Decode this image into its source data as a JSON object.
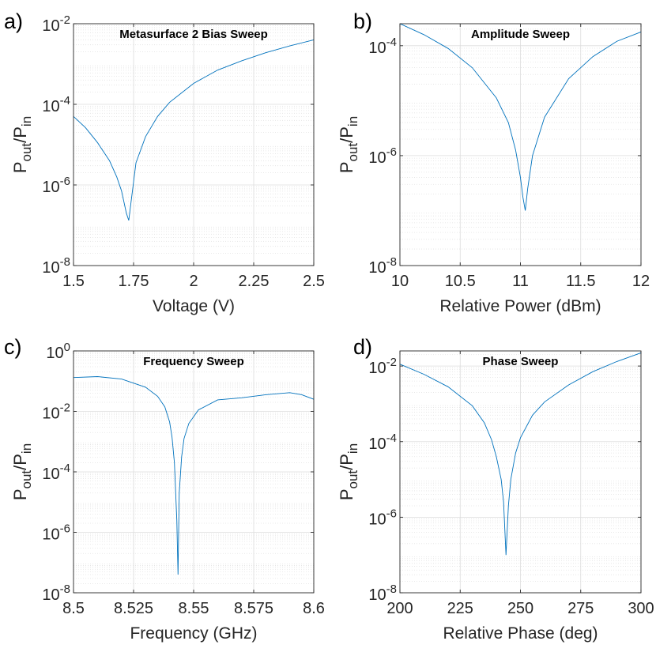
{
  "colors": {
    "line": "#0072BD",
    "grid": "#dcdcdc",
    "axis": "#262626"
  },
  "chart_data": [
    {
      "type": "line",
      "panel_label": "a)",
      "title": "Metasurface 2 Bias Sweep",
      "xlabel": "Voltage (V)",
      "ylabel": {
        "main": "P",
        "sub1": "out",
        "slash": "/P",
        "sub2": "in"
      },
      "xlim": [
        1.5,
        2.5
      ],
      "ylim_exp": [
        -8,
        -2
      ],
      "xticks": [
        1.5,
        1.75,
        2,
        2.25,
        2.5
      ],
      "xtick_labels": [
        "1.5",
        "1.75",
        "2",
        "2.25",
        "2.5"
      ],
      "yticks_exp": [
        -8,
        -6,
        -4,
        -2
      ],
      "ytick_labels": [
        {
          "base": "10",
          "exp": "-8"
        },
        {
          "base": "10",
          "exp": "-6"
        },
        {
          "base": "10",
          "exp": "-4"
        },
        {
          "base": "10",
          "exp": "-2"
        }
      ],
      "x": [
        1.5,
        1.55,
        1.6,
        1.65,
        1.68,
        1.7,
        1.72,
        1.73,
        1.74,
        1.76,
        1.8,
        1.85,
        1.9,
        2.0,
        2.1,
        2.2,
        2.3,
        2.4,
        2.5
      ],
      "y_log10": [
        -4.3,
        -4.58,
        -4.95,
        -5.4,
        -5.8,
        -6.15,
        -6.7,
        -6.88,
        -6.4,
        -5.45,
        -4.8,
        -4.3,
        -3.95,
        -3.48,
        -3.15,
        -2.92,
        -2.72,
        -2.55,
        -2.4
      ]
    },
    {
      "type": "line",
      "panel_label": "b)",
      "title": "Amplitude Sweep",
      "xlabel": "Relative Power (dBm)",
      "ylabel": {
        "main": "P",
        "sub1": "out",
        "slash": "/P",
        "sub2": "in"
      },
      "xlim": [
        10,
        12
      ],
      "ylim_exp": [
        -8,
        -3.6
      ],
      "xticks": [
        10,
        10.5,
        11,
        11.5,
        12
      ],
      "xtick_labels": [
        "10",
        "10.5",
        "11",
        "11.5",
        "12"
      ],
      "yticks_exp": [
        -8,
        -6,
        -4
      ],
      "ytick_labels": [
        {
          "base": "10",
          "exp": "-8"
        },
        {
          "base": "10",
          "exp": "-6"
        },
        {
          "base": "10",
          "exp": "-4"
        }
      ],
      "x": [
        10,
        10.2,
        10.4,
        10.6,
        10.8,
        10.9,
        10.96,
        11.0,
        11.02,
        11.04,
        11.06,
        11.1,
        11.2,
        11.4,
        11.6,
        11.8,
        12
      ],
      "y_log10": [
        -3.6,
        -3.8,
        -4.05,
        -4.4,
        -4.95,
        -5.4,
        -5.9,
        -6.4,
        -6.75,
        -7.0,
        -6.6,
        -6.0,
        -5.3,
        -4.6,
        -4.2,
        -3.92,
        -3.75
      ]
    },
    {
      "type": "line",
      "panel_label": "c)",
      "title": "Frequency Sweep",
      "xlabel": "Frequency (GHz)",
      "ylabel": {
        "main": "P",
        "sub1": "out",
        "slash": "/P",
        "sub2": "in"
      },
      "xlim": [
        8.5,
        8.6
      ],
      "ylim_exp": [
        -8,
        0
      ],
      "xticks": [
        8.5,
        8.525,
        8.55,
        8.575,
        8.6
      ],
      "xtick_labels": [
        "8.5",
        "8.525",
        "8.55",
        "8.575",
        "8.6"
      ],
      "yticks_exp": [
        -8,
        -6,
        -4,
        -2,
        0
      ],
      "ytick_labels": [
        {
          "base": "10",
          "exp": "-8"
        },
        {
          "base": "10",
          "exp": "-6"
        },
        {
          "base": "10",
          "exp": "-4"
        },
        {
          "base": "10",
          "exp": "-2"
        },
        {
          "base": "10",
          "exp": "0"
        }
      ],
      "x": [
        8.5,
        8.51,
        8.52,
        8.53,
        8.535,
        8.538,
        8.54,
        8.541,
        8.542,
        8.543,
        8.5435,
        8.544,
        8.545,
        8.546,
        8.548,
        8.552,
        8.56,
        8.57,
        8.58,
        8.59,
        8.595,
        8.6
      ],
      "y_log10": [
        -0.88,
        -0.85,
        -0.93,
        -1.2,
        -1.5,
        -1.85,
        -2.35,
        -2.85,
        -3.7,
        -5.6,
        -7.4,
        -4.7,
        -3.5,
        -2.9,
        -2.4,
        -1.95,
        -1.62,
        -1.55,
        -1.45,
        -1.38,
        -1.45,
        -1.6
      ]
    },
    {
      "type": "line",
      "panel_label": "d)",
      "title": "Phase Sweep",
      "xlabel": "Relative Phase (deg)",
      "ylabel": {
        "main": "P",
        "sub1": "out",
        "slash": "/P",
        "sub2": "in"
      },
      "xlim": [
        200,
        300
      ],
      "ylim_exp": [
        -8,
        -1.6
      ],
      "xticks": [
        200,
        225,
        250,
        275,
        300
      ],
      "xtick_labels": [
        "200",
        "225",
        "250",
        "275",
        "300"
      ],
      "yticks_exp": [
        -8,
        -6,
        -4,
        -2
      ],
      "ytick_labels": [
        {
          "base": "10",
          "exp": "-8"
        },
        {
          "base": "10",
          "exp": "-6"
        },
        {
          "base": "10",
          "exp": "-4"
        },
        {
          "base": "10",
          "exp": "-2"
        }
      ],
      "x": [
        200,
        210,
        220,
        230,
        235,
        238,
        240,
        242,
        243,
        244,
        245,
        246,
        248,
        250,
        255,
        260,
        270,
        280,
        290,
        300
      ],
      "y_log10": [
        -1.95,
        -2.22,
        -2.55,
        -3.05,
        -3.5,
        -3.95,
        -4.4,
        -5.0,
        -5.6,
        -7.0,
        -5.7,
        -5.0,
        -4.3,
        -3.9,
        -3.3,
        -2.95,
        -2.5,
        -2.15,
        -1.88,
        -1.65
      ]
    }
  ]
}
